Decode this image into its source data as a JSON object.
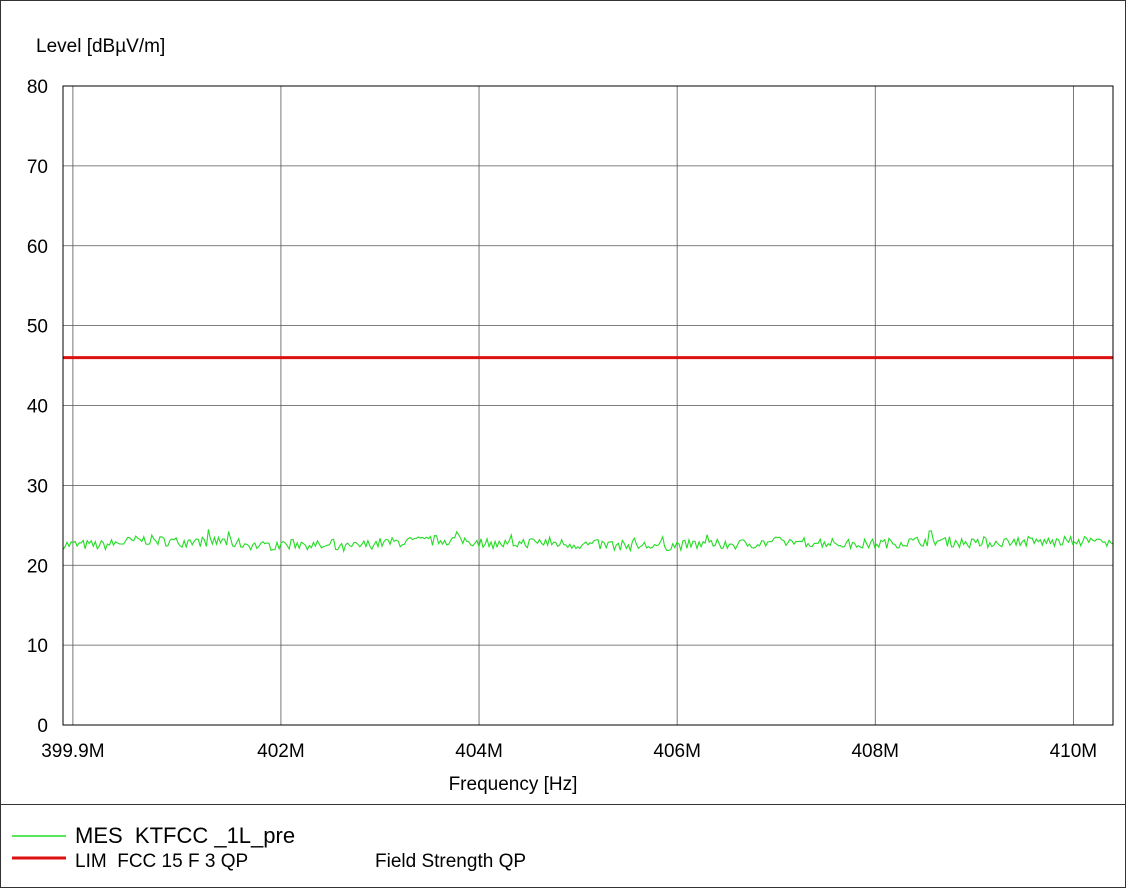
{
  "chart_data": {
    "type": "line",
    "ylabel": "Level [dBµV/m]",
    "xlabel": "Frequency [Hz]",
    "ylim": [
      0,
      80
    ],
    "yticks": [
      0,
      10,
      20,
      30,
      40,
      50,
      60,
      70,
      80
    ],
    "xlim": [
      399.8,
      410.4
    ],
    "x_unit_scale": "MHz",
    "xticks": [
      {
        "value": 399.9,
        "label": "399.9M"
      },
      {
        "value": 402,
        "label": "402M"
      },
      {
        "value": 404,
        "label": "404M"
      },
      {
        "value": 406,
        "label": "406M"
      },
      {
        "value": 408,
        "label": "408M"
      },
      {
        "value": 410,
        "label": "410M"
      }
    ],
    "grid": true,
    "series": [
      {
        "name": "MES  KTFCC _1L_pre",
        "color": "#22dd22",
        "kind": "noise_trace",
        "level_min": 21.5,
        "level_max": 24.8,
        "x": [
          399.8,
          400.2,
          400.6,
          401.0,
          401.4,
          401.8,
          402.2,
          402.6,
          403.0,
          403.4,
          403.8,
          404.2,
          404.6,
          405.0,
          405.4,
          405.8,
          406.2,
          406.6,
          407.0,
          407.4,
          407.8,
          408.2,
          408.6,
          409.0,
          409.4,
          409.8,
          410.2,
          410.4
        ],
        "y": [
          22.6,
          22.5,
          23.2,
          22.9,
          23.0,
          22.4,
          22.7,
          22.1,
          22.8,
          23.0,
          23.2,
          22.6,
          22.9,
          22.6,
          22.5,
          22.4,
          22.6,
          22.6,
          22.9,
          22.9,
          22.6,
          22.8,
          23.1,
          22.7,
          23.0,
          22.9,
          23.1,
          22.4
        ]
      },
      {
        "name": "LIM  FCC 15 F 3 QP",
        "description": "Field Strength QP",
        "color": "#dd1111",
        "x": [
          399.8,
          410.4
        ],
        "y": [
          46.0,
          46.0
        ]
      }
    ]
  }
}
